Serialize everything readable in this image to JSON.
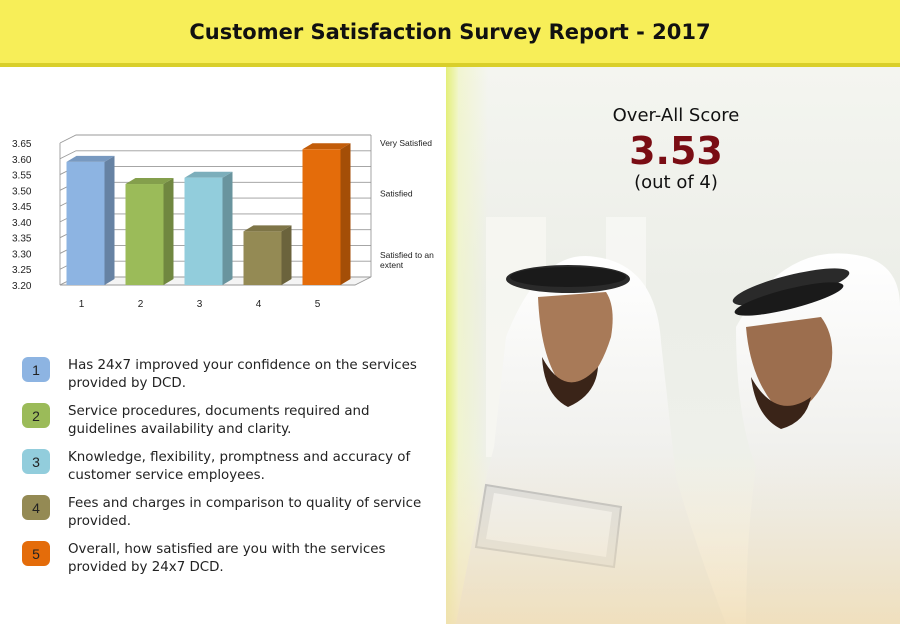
{
  "header": {
    "title": "Customer Satisfaction Survey Report - 2017"
  },
  "chart_data": {
    "type": "bar",
    "categories": [
      "1",
      "2",
      "3",
      "4",
      "5"
    ],
    "values": [
      3.59,
      3.52,
      3.54,
      3.37,
      3.63
    ],
    "ylim": [
      3.2,
      3.65
    ],
    "yticks": [
      "3.65",
      "3.60",
      "3.55",
      "3.50",
      "3.45",
      "3.40",
      "3.35",
      "3.30",
      "3.25",
      "3.20"
    ],
    "yticks_values": [
      3.65,
      3.6,
      3.55,
      3.5,
      3.45,
      3.4,
      3.35,
      3.3,
      3.25,
      3.2
    ],
    "grid": true,
    "bar_colors": [
      "#8db4e2",
      "#9bbb59",
      "#92cddc",
      "#948a54",
      "#e46c0a"
    ],
    "annotations": [
      {
        "text": "Very Satisfied",
        "y": 3.64
      },
      {
        "text": "Satisfied",
        "y": 3.48
      },
      {
        "text": "Satisfied to an extent",
        "y": 3.28
      }
    ]
  },
  "legend": [
    {
      "num": "1",
      "text": "Has 24x7 improved your confidence on the services provided by DCD.",
      "color": "#8db4e2"
    },
    {
      "num": "2",
      "text": "Service procedures, documents required and guidelines availability and clarity.",
      "color": "#9bbb59"
    },
    {
      "num": "3",
      "text": "Knowledge, flexibility, promptness and accuracy of customer service employees.",
      "color": "#92cddc"
    },
    {
      "num": "4",
      "text": "Fees and charges in comparison to quality of service provided.",
      "color": "#948a54"
    },
    {
      "num": "5",
      "text": "Overall, how satisfied are you with the services provided by 24x7 DCD.",
      "color": "#e46c0a"
    }
  ],
  "score": {
    "title": "Over-All Score",
    "value": "3.53",
    "subtitle": "(out of 4)"
  }
}
